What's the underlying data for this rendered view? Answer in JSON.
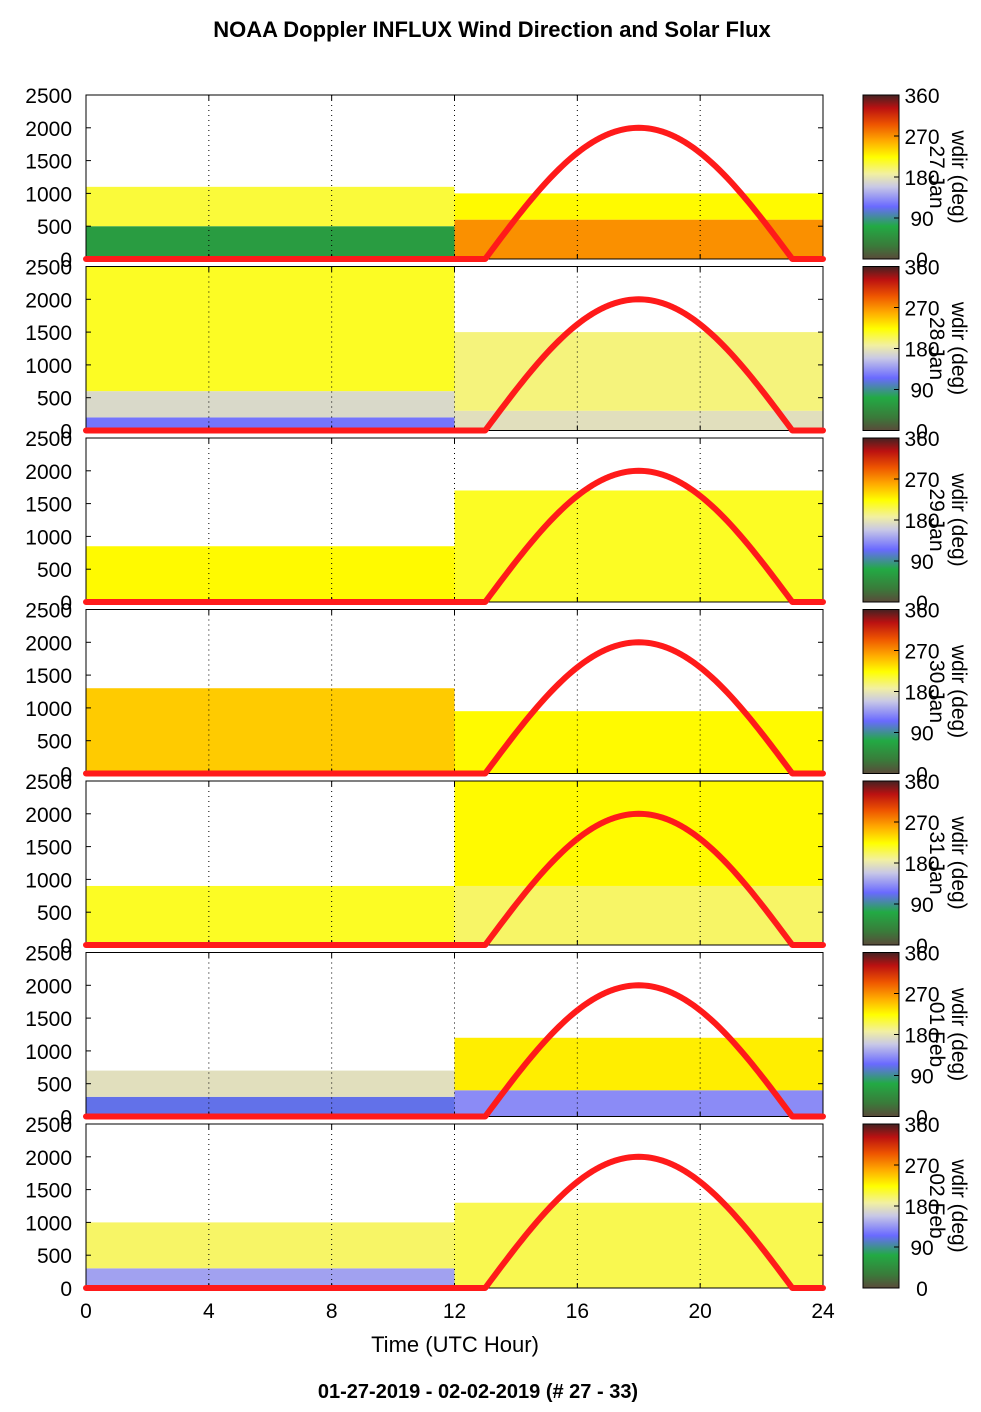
{
  "header": {
    "title": "NOAA Doppler INFLUX Wind Direction and Solar Flux"
  },
  "footer": {
    "date_range": "01-27-2019 - 02-02-2019   (# 27 - 33)"
  },
  "colors": {
    "solar_curve": "#ff1a1a",
    "vgrid": "#000000"
  },
  "chart_data": {
    "type": "heatmap",
    "title": "NOAA Doppler INFLUX Wind Direction and Solar Flux",
    "xlabel": "Time (UTC Hour)",
    "xlim": [
      0,
      24
    ],
    "x_ticks": [
      "0",
      "4",
      "8",
      "12",
      "16",
      "20",
      "24"
    ],
    "x_grid": [
      4,
      8,
      12,
      16,
      20
    ],
    "ylim": [
      0,
      2500
    ],
    "y_ticks": [
      "0",
      "500",
      "1000",
      "1500",
      "2000",
      "2500"
    ],
    "colorbar": {
      "label": "wdir (deg)",
      "ticks": [
        "0",
        "90",
        "180",
        "270",
        "360"
      ],
      "range": [
        0,
        360
      ]
    },
    "solar_flux": {
      "rise_hour": 13,
      "peak_hour": 18,
      "set_hour": 23,
      "peak": 2000
    },
    "panels": [
      {
        "day_label": "27 Jan",
        "profile": [
          [
            0,
            500,
            60
          ],
          [
            500,
            1100,
            210
          ],
          [
            1100,
            2500,
            null
          ]
        ],
        "evening_profile": [
          [
            0,
            600,
            270
          ],
          [
            600,
            1000,
            225
          ],
          [
            1000,
            2500,
            null
          ]
        ]
      },
      {
        "day_label": "28 Jan",
        "profile": [
          [
            0,
            200,
            120
          ],
          [
            200,
            600,
            170
          ],
          [
            600,
            2500,
            215
          ]
        ],
        "evening_profile": [
          [
            0,
            300,
            175
          ],
          [
            300,
            1500,
            195
          ],
          [
            1500,
            2500,
            null
          ]
        ]
      },
      {
        "day_label": "29 Jan",
        "profile": [
          [
            0,
            850,
            225
          ],
          [
            850,
            2500,
            null
          ]
        ],
        "evening_profile": [
          [
            0,
            1700,
            215
          ],
          [
            1700,
            2500,
            null
          ]
        ]
      },
      {
        "day_label": "30 Jan",
        "profile": [
          [
            0,
            1300,
            245
          ],
          [
            1300,
            2500,
            null
          ]
        ],
        "evening_profile": [
          [
            0,
            950,
            225
          ],
          [
            950,
            2500,
            null
          ]
        ]
      },
      {
        "day_label": "31 Jan",
        "profile": [
          [
            0,
            900,
            215
          ],
          [
            900,
            2500,
            null
          ]
        ],
        "evening_profile": [
          [
            0,
            900,
            200
          ],
          [
            900,
            2500,
            225
          ]
        ]
      },
      {
        "day_label": "01 Feb",
        "profile": [
          [
            0,
            300,
            110
          ],
          [
            300,
            700,
            175
          ],
          [
            700,
            2500,
            null
          ]
        ],
        "evening_profile": [
          [
            0,
            400,
            130
          ],
          [
            400,
            1200,
            230
          ],
          [
            1200,
            2500,
            null
          ]
        ]
      },
      {
        "day_label": "02 Feb",
        "profile": [
          [
            0,
            300,
            140
          ],
          [
            300,
            1000,
            200
          ],
          [
            1000,
            2500,
            null
          ]
        ],
        "evening_profile": [
          [
            0,
            1300,
            205
          ],
          [
            1300,
            2500,
            null
          ]
        ]
      }
    ]
  }
}
